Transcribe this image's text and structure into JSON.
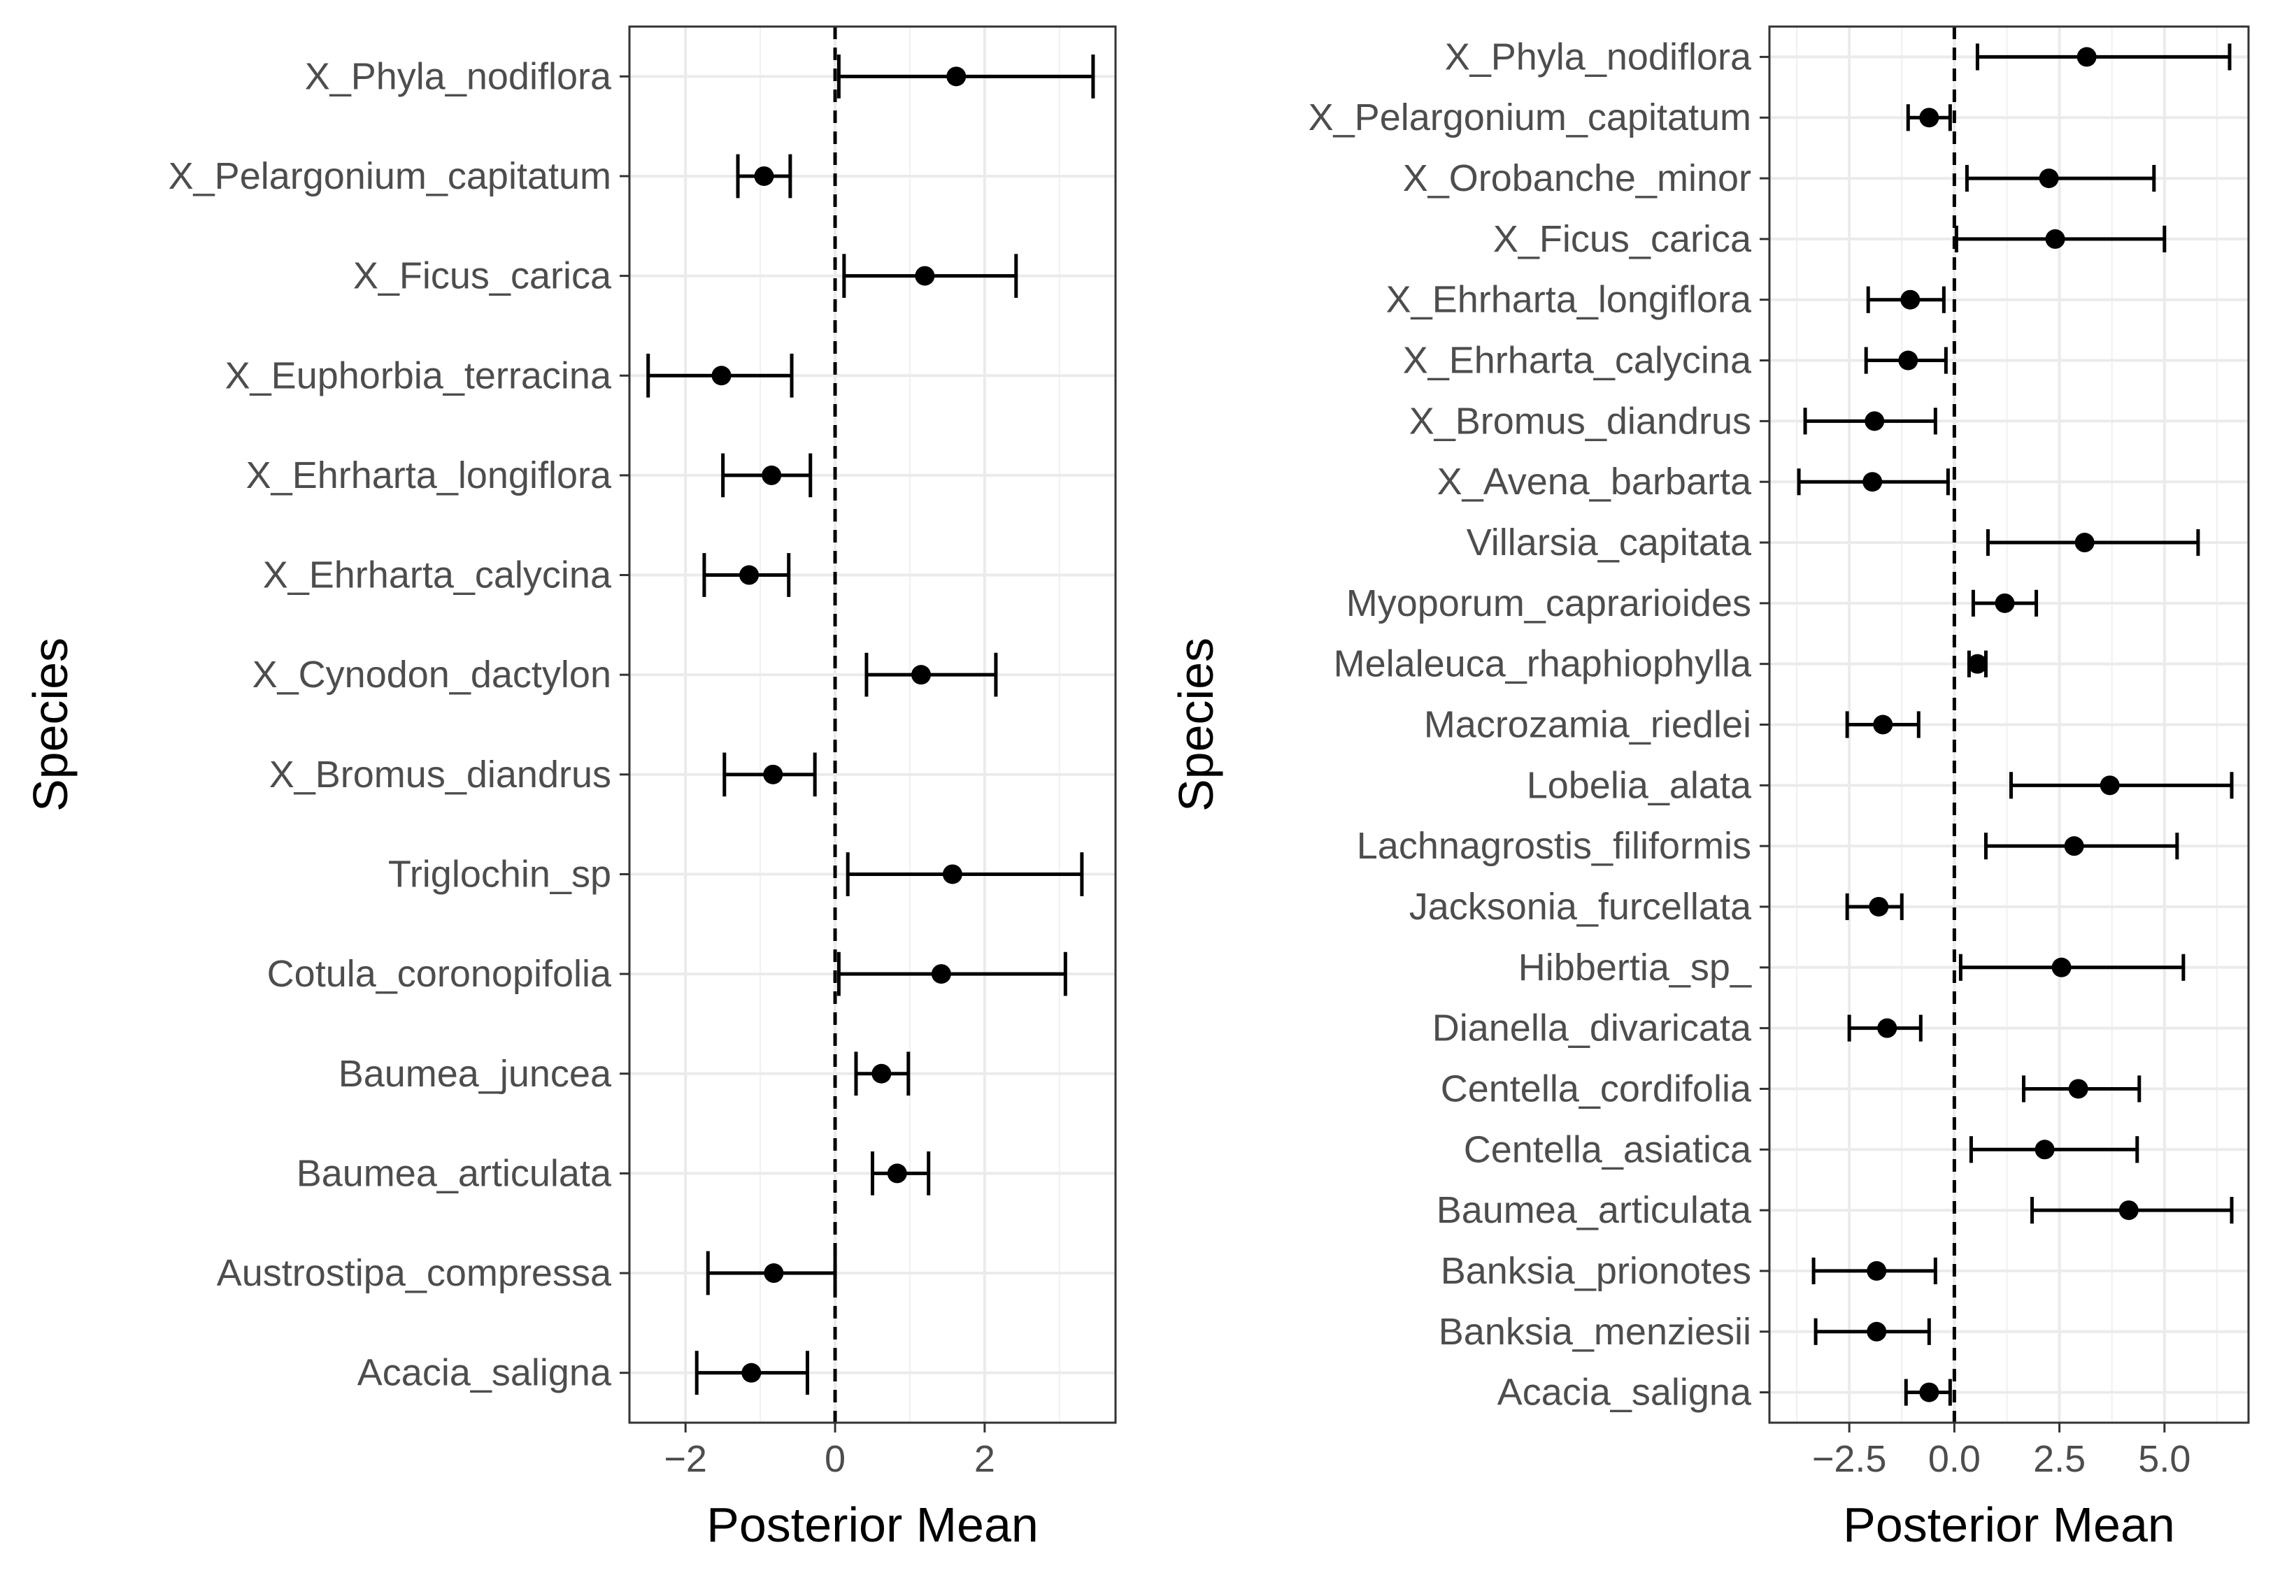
{
  "chart_data": [
    {
      "type": "errorbar",
      "xlabel": "Posterior Mean",
      "ylabel": "Species",
      "xlim": [
        -2.75,
        3.75
      ],
      "xticks": [
        -2,
        0,
        2
      ],
      "xtick_labels": [
        "−2",
        "0",
        "2"
      ],
      "reference_line_x": 0,
      "grid": true,
      "categories": [
        "X_Phyla_nodiflora",
        "X_Pelargonium_capitatum",
        "X_Ficus_carica",
        "X_Euphorbia_terracina",
        "X_Ehrharta_longiflora",
        "X_Ehrharta_calycina",
        "X_Cynodon_dactylon",
        "X_Bromus_diandrus",
        "Triglochin_sp",
        "Cotula_coronopifolia",
        "Baumea_juncea",
        "Baumea_articulata",
        "Austrostipa_compressa",
        "Acacia_saligna"
      ],
      "mean": [
        1.62,
        -0.95,
        1.2,
        -1.52,
        -0.85,
        -1.15,
        1.15,
        -0.83,
        1.57,
        1.42,
        0.62,
        0.83,
        -0.82,
        -1.12
      ],
      "lower": [
        0.05,
        -1.3,
        0.12,
        -2.5,
        -1.5,
        -1.75,
        0.42,
        -1.48,
        0.17,
        0.05,
        0.28,
        0.5,
        -1.7,
        -1.85
      ],
      "upper": [
        3.45,
        -0.6,
        2.42,
        -0.58,
        -0.33,
        -0.62,
        2.15,
        -0.27,
        3.3,
        3.08,
        0.98,
        1.25,
        0.0,
        -0.37
      ]
    },
    {
      "type": "errorbar",
      "xlabel": "Posterior Mean",
      "ylabel": "Species",
      "xlim": [
        -4.4,
        7.0
      ],
      "xticks": [
        -2.5,
        0.0,
        2.5,
        5.0
      ],
      "xtick_labels": [
        "−2.5",
        "0.0",
        "2.5",
        "5.0"
      ],
      "reference_line_x": 0,
      "grid": true,
      "categories": [
        "X_Phyla_nodiflora",
        "X_Pelargonium_capitatum",
        "X_Orobanche_minor",
        "X_Ficus_carica",
        "X_Ehrharta_longiflora",
        "X_Ehrharta_calycina",
        "X_Bromus_diandrus",
        "X_Avena_barbarta",
        "Villarsia_capitata",
        "Myoporum_caprarioides",
        "Melaleuca_rhaphiophylla",
        "Macrozamia_riedlei",
        "Lobelia_alata",
        "Lachnagrostis_filiformis",
        "Jacksonia_furcellata",
        "Hibbertia_sp_",
        "Dianella_divaricata",
        "Centella_cordifolia",
        "Centella_asiatica",
        "Baumea_articulata",
        "Banksia_prionotes",
        "Banksia_menziesii",
        "Acacia_saligna"
      ],
      "mean": [
        3.15,
        -0.6,
        2.25,
        2.4,
        -1.05,
        -1.1,
        -1.9,
        -1.95,
        3.1,
        1.2,
        0.55,
        -1.7,
        3.7,
        2.85,
        -1.8,
        2.55,
        -1.6,
        2.95,
        2.15,
        4.15,
        -1.85,
        -1.85,
        -0.6
      ],
      "lower": [
        0.55,
        -1.1,
        0.3,
        0.05,
        -2.05,
        -2.1,
        -3.55,
        -3.7,
        0.8,
        0.45,
        0.35,
        -2.55,
        1.35,
        0.75,
        -2.55,
        0.15,
        -2.5,
        1.65,
        0.4,
        1.85,
        -3.35,
        -3.3,
        -1.15
      ],
      "upper": [
        6.55,
        -0.1,
        4.75,
        5.0,
        -0.25,
        -0.2,
        -0.45,
        -0.15,
        5.8,
        1.95,
        0.75,
        -0.85,
        6.6,
        5.3,
        -1.25,
        5.45,
        -0.8,
        4.4,
        4.35,
        6.6,
        -0.45,
        -0.6,
        -0.1
      ]
    }
  ]
}
